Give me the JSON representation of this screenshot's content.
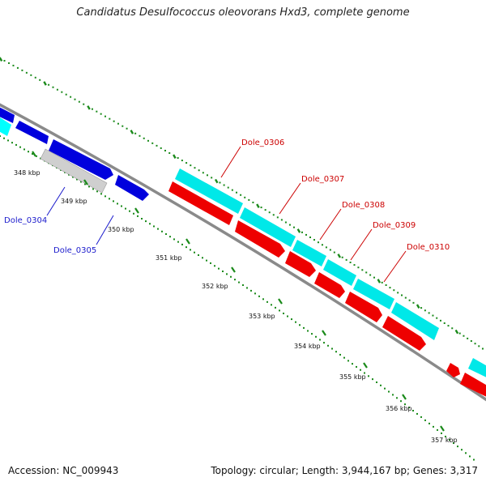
{
  "title": "Candidatus Desulfococcus oleovorans Hxd3, complete genome",
  "footer": {
    "accession": "Accession: NC_009943",
    "topology": "Topology: circular; Length: 3,944,167 bp; Genes: 3,317"
  },
  "colors": {
    "backbone": "#8a8a8a",
    "dots": "#1a8a1a",
    "forward_gene": "#00ffff",
    "reverse_gene_red": "#ff0000",
    "reverse_gene_blue": "#0000ee",
    "pseudo_gene": "#c8c8c8",
    "label_blue": "#1a1acc",
    "label_red": "#cc0000"
  },
  "ticks": [
    "348 kbp",
    "349 kbp",
    "350 kbp",
    "351 kbp",
    "352 kbp",
    "353 kbp",
    "354 kbp",
    "355 kbp",
    "356 kbp",
    "357 kbp"
  ],
  "gene_labels": [
    {
      "text": "Dole_0304",
      "color": "blue"
    },
    {
      "text": "Dole_0305",
      "color": "blue"
    },
    {
      "text": "Dole_0306",
      "color": "red"
    },
    {
      "text": "Dole_0307",
      "color": "red"
    },
    {
      "text": "Dole_0308",
      "color": "red"
    },
    {
      "text": "Dole_0309",
      "color": "red"
    },
    {
      "text": "Dole_0310",
      "color": "red"
    }
  ]
}
